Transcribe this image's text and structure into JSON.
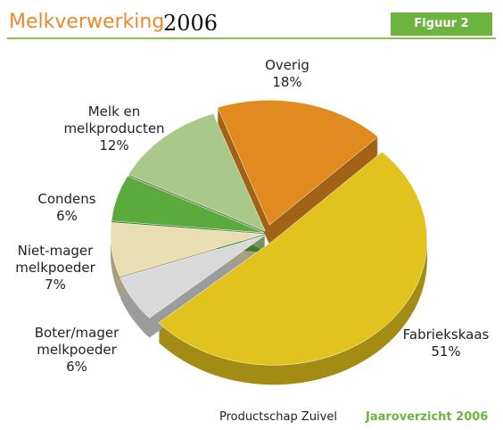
{
  "chart_data": {
    "type": "pie",
    "title": "Melkverwerking",
    "year": "2006",
    "figure_label": "Figuur 2",
    "source": "Productschap Zuivel",
    "source_publication": "Jaaroverzicht 2006",
    "categories": [
      "Fabriekskaas",
      "Boter/mager melkpoeder",
      "Niet-mager melkpoeder",
      "Condens",
      "Melk en melkproducten",
      "Overig"
    ],
    "values": [
      51,
      6,
      7,
      6,
      12,
      18
    ],
    "value_labels": [
      "51%",
      "6%",
      "7%",
      "6%",
      "12%",
      "18%"
    ],
    "colors": [
      "#e2c21c",
      "#d9d9d9",
      "#e9ddb2",
      "#5aab3c",
      "#a9c98b",
      "#e08a1f"
    ]
  }
}
